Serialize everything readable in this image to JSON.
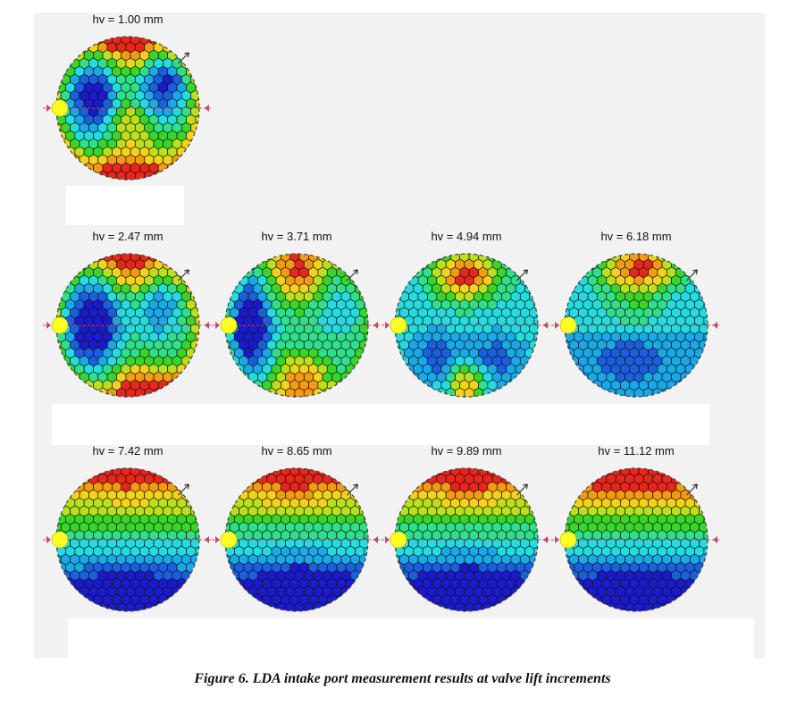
{
  "caption": "Figure 6. LDA intake port measurement results at valve lift increments",
  "colors": {
    "panel_background": "#f2f2f2",
    "scale": [
      "#1a1acc",
      "#1a5fe0",
      "#19a8e8",
      "#22dce0",
      "#2ee08a",
      "#39d62a",
      "#b8e01c",
      "#f2d21a",
      "#f59a12",
      "#e8261c"
    ],
    "valve_marker": "#ffff22",
    "axis_line": "#c04a6a"
  },
  "plots": [
    {
      "label": "hv = 1.00 mm",
      "pattern": "lift-1"
    },
    {
      "label": "hv = 2.47 mm",
      "pattern": "lift-2"
    },
    {
      "label": "hv = 3.71 mm",
      "pattern": "lift-3"
    },
    {
      "label": "hv = 4.94 mm",
      "pattern": "lift-4"
    },
    {
      "label": "hv = 6.18 mm",
      "pattern": "lift-5"
    },
    {
      "label": "hv = 7.42 mm",
      "pattern": "lift-6"
    },
    {
      "label": "hv = 8.65 mm",
      "pattern": "lift-7"
    },
    {
      "label": "hv = 9.89 mm",
      "pattern": "lift-8"
    },
    {
      "label": "hv = 11.12 mm",
      "pattern": "lift-9"
    }
  ]
}
